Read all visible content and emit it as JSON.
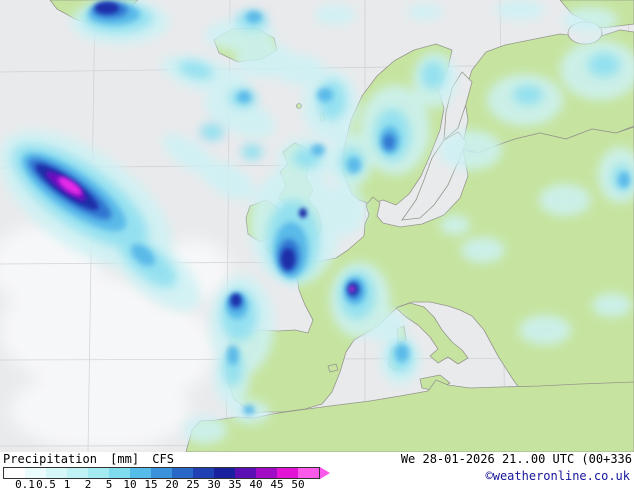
{
  "legend": {
    "title": "Precipitation",
    "units": "[mm]",
    "model": "CFS",
    "tick_labels": [
      "0.1",
      "0.5",
      "1",
      "2",
      "5",
      "10",
      "15",
      "20",
      "25",
      "30",
      "35",
      "40",
      "45",
      "50"
    ],
    "colors": [
      "#ffffff",
      "#eafcfc",
      "#d5f7f8",
      "#bff2f4",
      "#a4eaf1",
      "#7edcee",
      "#55bce9",
      "#3a92da",
      "#2a68c8",
      "#2041b4",
      "#19219f",
      "#5a10b2",
      "#a30cc6",
      "#e215d6",
      "#fb59e9"
    ]
  },
  "footer": {
    "datetime": "We 28-01-2026 21..00 UTC (00+336",
    "copyright": "©weatheronline.co.uk"
  },
  "map": {
    "colors": {
      "ocean": "#e9eaec",
      "land": "#c6e4a0",
      "coastline": "#96968c",
      "grid": "#c7c8cc",
      "white_patch": "#fafbfc",
      "precip_trace": "#cdf2f4",
      "precip_light": "#8edff0",
      "precip_moderate": "#55b6e8",
      "precip_heavy": "#2f72d0",
      "precip_very_heavy": "#1c2fa8",
      "precip_intense": "#6e10c0",
      "precip_extreme": "#e82ce8"
    }
  }
}
